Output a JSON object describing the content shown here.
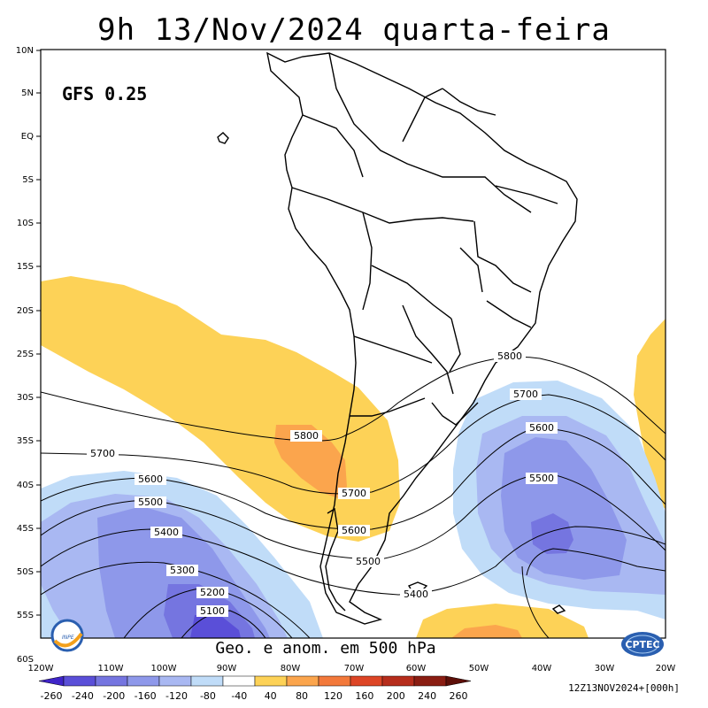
{
  "header": {
    "title": "9h 13/Nov/2024 quarta-feira",
    "model": "GFS 0.25",
    "field_label": "Geo. e anom. em 500 hPa",
    "logo_left": "INPE",
    "logo_right": "CPTEC",
    "run_info": "12Z13NOV2024+[000h]"
  },
  "axes": {
    "lat_labels": [
      "10N",
      "5N",
      "EQ",
      "5S",
      "10S",
      "15S",
      "20S",
      "25S",
      "30S",
      "35S",
      "40S",
      "45S",
      "50S",
      "55S",
      "60S"
    ],
    "lon_labels": [
      "120W",
      "110W",
      "100W",
      "90W",
      "80W",
      "70W",
      "60W",
      "50W",
      "40W",
      "30W",
      "20W"
    ]
  },
  "contours": {
    "levels": [
      "5800",
      "5700",
      "5600",
      "5500",
      "5400",
      "5300",
      "5200",
      "5100"
    ],
    "east_labels": [
      "5800",
      "5700",
      "5600",
      "5500"
    ],
    "west_labels": [
      "5700",
      "5600",
      "5500",
      "5400",
      "5300",
      "5200",
      "5100"
    ],
    "center_labels": [
      "5800",
      "5700",
      "5600",
      "5500",
      "5400"
    ]
  },
  "colorbar": {
    "labels": [
      "-260",
      "-240",
      "-200",
      "-160",
      "-120",
      "-80",
      "-40",
      "40",
      "80",
      "120",
      "160",
      "200",
      "240",
      "260"
    ],
    "colors": [
      "#3f24c8",
      "#5a4fd8",
      "#7575e0",
      "#8e98ea",
      "#a9b8f2",
      "#c0dcf8",
      "#ffffff",
      "#fdd257",
      "#fba54d",
      "#f3793b",
      "#dd4526",
      "#b62d1c",
      "#8a1d12",
      "#5d0f08"
    ]
  },
  "colors": {
    "pos_light": "#fdd257",
    "pos_orange": "#fba54d",
    "neg_1": "#c0dcf8",
    "neg_2": "#a9b8f2",
    "neg_3": "#8e98ea",
    "neg_4": "#7575e0",
    "neg_5": "#5a4fd8",
    "land_line": "#000000"
  }
}
